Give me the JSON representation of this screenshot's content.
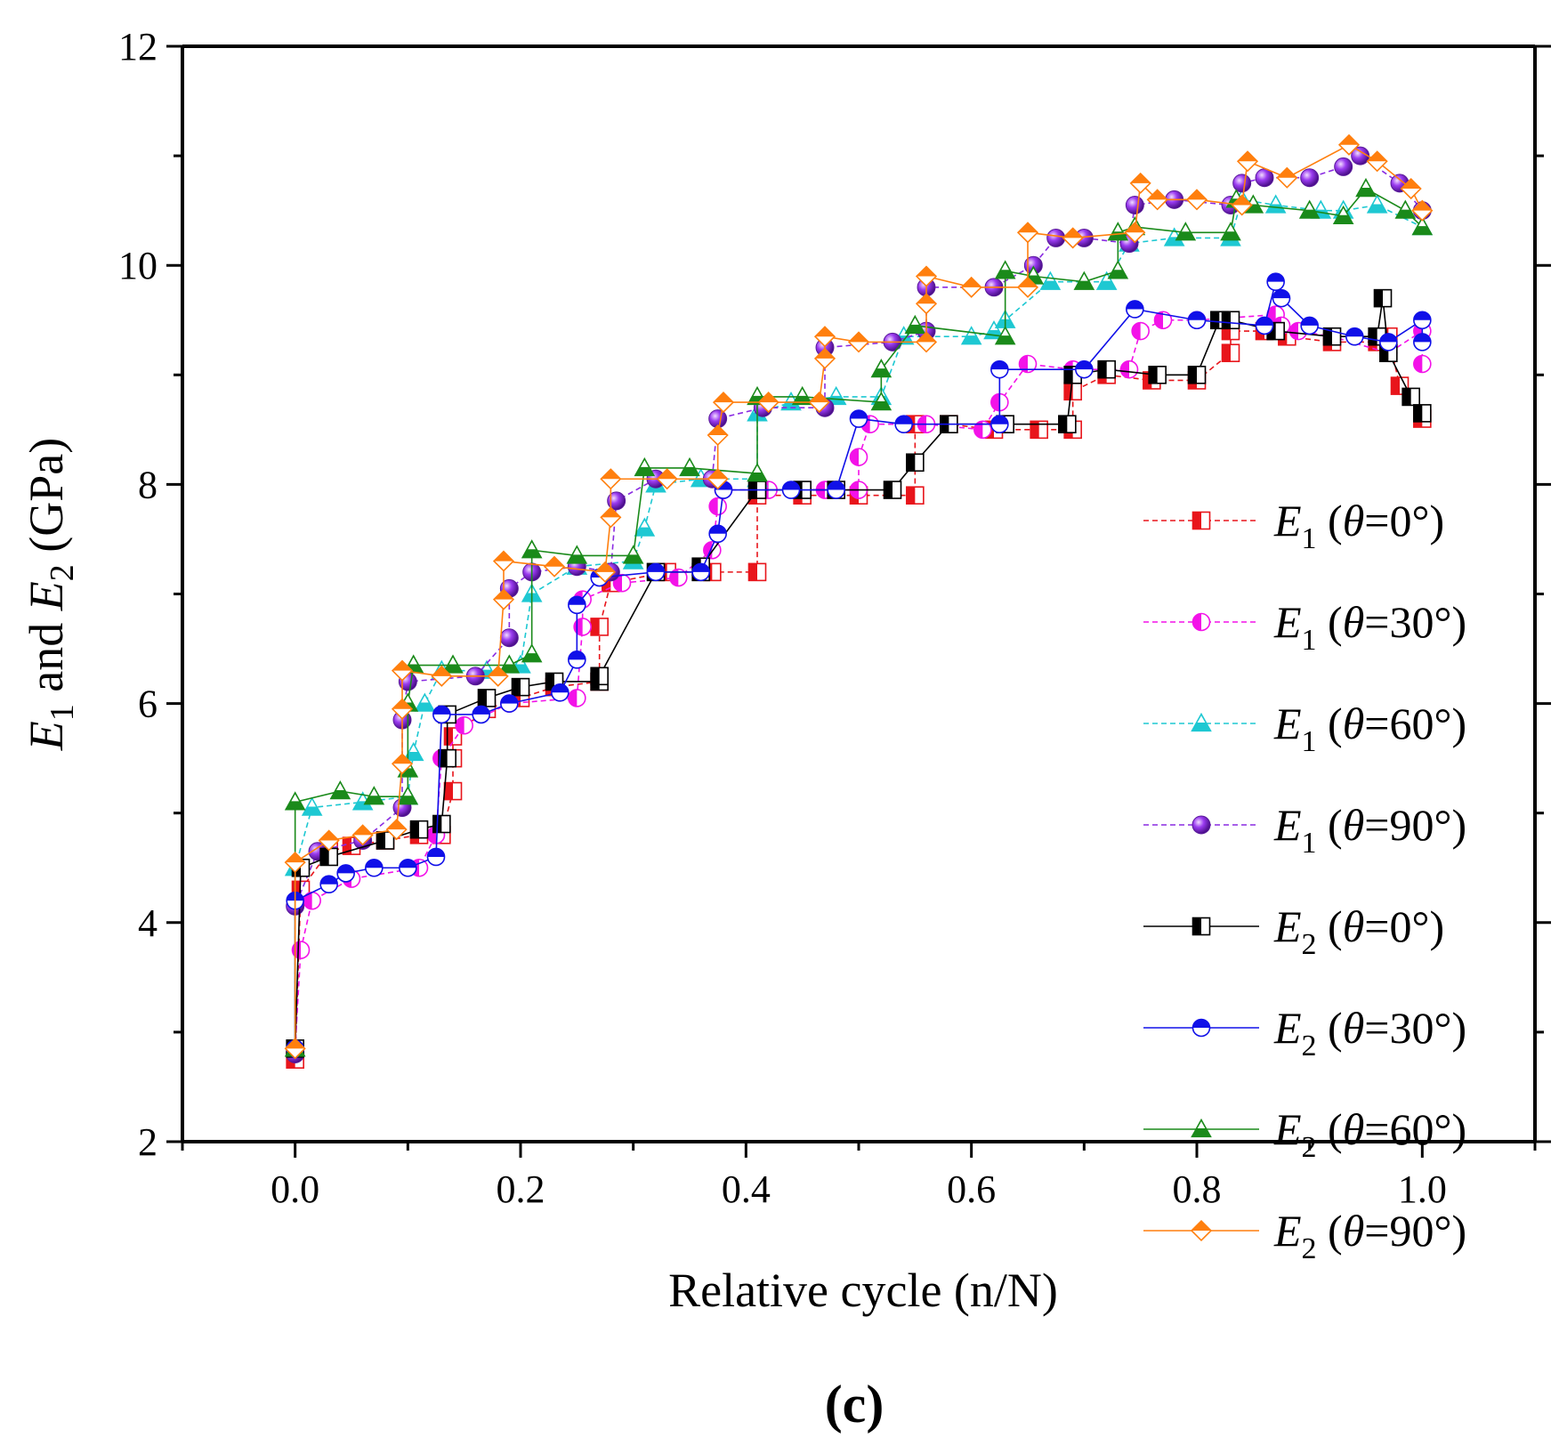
{
  "chart_data": {
    "type": "line",
    "title": "",
    "panel_label": "(c)",
    "xlabel": "Relative cycle (n/N)",
    "ylabel": {
      "e1": "E",
      "s1": "1",
      "and": " and ",
      "e2": "E",
      "s2": "2",
      "units": " (GPa)"
    },
    "xlim": [
      -0.1,
      1.1
    ],
    "ylim": [
      2,
      12
    ],
    "xticks": [
      0.0,
      0.2,
      0.4,
      0.6,
      0.8,
      1.0
    ],
    "xtick_labels": [
      "0.0",
      "0.2",
      "0.4",
      "0.6",
      "0.8",
      "1.0"
    ],
    "yticks": [
      2,
      4,
      6,
      8,
      10,
      12
    ],
    "ytick_labels": [
      "2",
      "4",
      "6",
      "8",
      "10",
      "12"
    ],
    "grid": false,
    "legend_position": "right",
    "series": [
      {
        "name": "E1 (θ=0°)",
        "sym": "E",
        "sub": "1",
        "angle": "0°",
        "color": "#e8151b",
        "dash": true,
        "marker": "square",
        "x": [
          0.0,
          0.005,
          0.03,
          0.05,
          0.08,
          0.11,
          0.13,
          0.14,
          0.14,
          0.14,
          0.17,
          0.2,
          0.23,
          0.27,
          0.27,
          0.28,
          0.33,
          0.37,
          0.41,
          0.41,
          0.45,
          0.5,
          0.55,
          0.55,
          0.58,
          0.62,
          0.66,
          0.69,
          0.69,
          0.72,
          0.76,
          0.8,
          0.83,
          0.83,
          0.86,
          0.88,
          0.92,
          0.96,
          0.97,
          0.98,
          1.0
        ],
        "y": [
          2.75,
          4.3,
          4.65,
          4.7,
          4.75,
          4.8,
          4.8,
          5.2,
          5.5,
          5.7,
          5.95,
          6.05,
          6.15,
          6.2,
          6.7,
          7.1,
          7.2,
          7.2,
          7.2,
          7.9,
          7.9,
          7.9,
          7.9,
          8.55,
          8.55,
          8.5,
          8.5,
          8.5,
          8.85,
          9.0,
          8.95,
          8.95,
          9.2,
          9.4,
          9.4,
          9.35,
          9.3,
          9.3,
          9.35,
          8.9,
          8.6
        ]
      },
      {
        "name": "E1 (θ=30°)",
        "sym": "E",
        "sub": "1",
        "angle": "30°",
        "color": "#f312e8",
        "dash": true,
        "marker": "circle",
        "x": [
          0.0,
          0.005,
          0.015,
          0.05,
          0.11,
          0.125,
          0.13,
          0.15,
          0.19,
          0.25,
          0.255,
          0.255,
          0.29,
          0.34,
          0.37,
          0.375,
          0.38,
          0.42,
          0.47,
          0.5,
          0.5,
          0.51,
          0.56,
          0.61,
          0.625,
          0.65,
          0.69,
          0.74,
          0.75,
          0.77,
          0.8,
          0.87,
          0.875,
          0.89,
          0.92,
          0.97,
          1.0,
          1.0
        ],
        "y": [
          2.85,
          3.75,
          4.2,
          4.4,
          4.5,
          4.8,
          5.5,
          5.8,
          6.0,
          6.05,
          6.7,
          6.95,
          7.1,
          7.15,
          7.4,
          7.8,
          7.95,
          7.95,
          7.95,
          7.95,
          8.25,
          8.55,
          8.55,
          8.5,
          8.75,
          9.1,
          9.05,
          9.05,
          9.4,
          9.5,
          9.5,
          9.55,
          9.45,
          9.4,
          9.35,
          9.2,
          9.4,
          9.1
        ]
      },
      {
        "name": "E1 (θ=60°)",
        "sym": "E",
        "sub": "1",
        "angle": "60°",
        "color": "#1ec8d2",
        "dash": true,
        "marker": "triangle",
        "x": [
          0.0,
          0.0,
          0.015,
          0.06,
          0.1,
          0.105,
          0.115,
          0.13,
          0.17,
          0.2,
          0.21,
          0.25,
          0.3,
          0.31,
          0.32,
          0.36,
          0.41,
          0.41,
          0.44,
          0.48,
          0.52,
          0.54,
          0.6,
          0.62,
          0.63,
          0.67,
          0.72,
          0.74,
          0.78,
          0.83,
          0.84,
          0.87,
          0.91,
          0.93,
          0.96,
          1.0
        ],
        "y": [
          2.85,
          4.5,
          5.05,
          5.1,
          5.15,
          5.55,
          6.0,
          6.3,
          6.3,
          6.35,
          7.0,
          7.25,
          7.3,
          7.6,
          8.0,
          8.05,
          8.05,
          8.65,
          8.75,
          8.8,
          8.8,
          9.35,
          9.35,
          9.4,
          9.5,
          9.85,
          9.85,
          10.2,
          10.25,
          10.25,
          10.6,
          10.55,
          10.5,
          10.5,
          10.55,
          10.35
        ]
      },
      {
        "name": "E1 (θ=90°)",
        "sym": "E",
        "sub": "1",
        "angle": "90°",
        "color": "#8a2be2",
        "dash": true,
        "marker": "sphere",
        "x": [
          0.0,
          0.0,
          0.02,
          0.06,
          0.095,
          0.095,
          0.1,
          0.16,
          0.19,
          0.19,
          0.21,
          0.25,
          0.28,
          0.285,
          0.32,
          0.37,
          0.375,
          0.415,
          0.47,
          0.47,
          0.53,
          0.56,
          0.56,
          0.62,
          0.655,
          0.675,
          0.7,
          0.74,
          0.745,
          0.78,
          0.83,
          0.84,
          0.86,
          0.9,
          0.93,
          0.945,
          0.98,
          1.0
        ],
        "y": [
          2.8,
          4.15,
          4.65,
          4.75,
          5.05,
          5.85,
          6.2,
          6.25,
          6.6,
          7.05,
          7.2,
          7.25,
          7.2,
          7.85,
          8.05,
          8.05,
          8.6,
          8.7,
          8.7,
          9.25,
          9.3,
          9.4,
          9.8,
          9.8,
          10.0,
          10.25,
          10.25,
          10.2,
          10.55,
          10.6,
          10.55,
          10.75,
          10.8,
          10.8,
          10.9,
          11.0,
          10.75,
          10.5
        ]
      },
      {
        "name": "E2 (θ=0°)",
        "sym": "E",
        "sub": "2",
        "angle": "0°",
        "color": "#000000",
        "dash": false,
        "marker": "square",
        "x": [
          0.0,
          0.005,
          0.03,
          0.08,
          0.11,
          0.13,
          0.135,
          0.135,
          0.17,
          0.2,
          0.23,
          0.27,
          0.27,
          0.32,
          0.36,
          0.36,
          0.41,
          0.45,
          0.48,
          0.53,
          0.55,
          0.58,
          0.63,
          0.685,
          0.69,
          0.72,
          0.765,
          0.8,
          0.82,
          0.83,
          0.87,
          0.92,
          0.96,
          0.965,
          0.97,
          0.99,
          1.0
        ],
        "y": [
          2.85,
          4.5,
          4.6,
          4.75,
          4.85,
          4.9,
          5.5,
          5.9,
          6.05,
          6.15,
          6.2,
          6.2,
          6.25,
          7.2,
          7.2,
          7.25,
          7.95,
          7.95,
          7.95,
          7.95,
          8.2,
          8.55,
          8.55,
          8.55,
          9.0,
          9.05,
          9.0,
          9.0,
          9.5,
          9.5,
          9.4,
          9.35,
          9.35,
          9.7,
          9.2,
          8.8,
          8.65
        ]
      },
      {
        "name": "E2 (θ=30°)",
        "sym": "E",
        "sub": "2",
        "angle": "30°",
        "color": "#1010e8",
        "dash": false,
        "marker": "half-circle",
        "x": [
          0.0,
          0.0,
          0.03,
          0.045,
          0.07,
          0.1,
          0.125,
          0.13,
          0.165,
          0.19,
          0.235,
          0.25,
          0.25,
          0.27,
          0.32,
          0.36,
          0.375,
          0.38,
          0.44,
          0.48,
          0.5,
          0.54,
          0.625,
          0.625,
          0.7,
          0.745,
          0.8,
          0.86,
          0.87,
          0.875,
          0.9,
          0.94,
          0.97,
          1.0,
          1.0
        ],
        "y": [
          2.85,
          4.2,
          4.35,
          4.45,
          4.5,
          4.5,
          4.6,
          5.9,
          5.9,
          6.0,
          6.1,
          6.4,
          6.9,
          7.15,
          7.2,
          7.2,
          7.55,
          7.95,
          7.95,
          7.95,
          8.6,
          8.55,
          8.55,
          9.05,
          9.05,
          9.6,
          9.5,
          9.45,
          9.85,
          9.7,
          9.45,
          9.35,
          9.3,
          9.5,
          9.3
        ]
      },
      {
        "name": "E2 (θ=60°)",
        "sym": "E",
        "sub": "2",
        "angle": "60°",
        "color": "#1a8a1a",
        "dash": false,
        "marker": "triangle",
        "x": [
          0.0,
          0.0,
          0.04,
          0.07,
          0.1,
          0.1,
          0.1,
          0.105,
          0.14,
          0.19,
          0.21,
          0.21,
          0.25,
          0.3,
          0.31,
          0.35,
          0.41,
          0.41,
          0.45,
          0.52,
          0.52,
          0.55,
          0.63,
          0.63,
          0.655,
          0.7,
          0.73,
          0.73,
          0.745,
          0.79,
          0.83,
          0.835,
          0.85,
          0.9,
          0.93,
          0.95,
          0.985,
          1.0
        ],
        "y": [
          2.85,
          5.1,
          5.2,
          5.15,
          5.15,
          5.4,
          6.0,
          6.35,
          6.35,
          6.35,
          6.45,
          7.4,
          7.35,
          7.35,
          8.15,
          8.15,
          8.1,
          8.8,
          8.8,
          8.75,
          9.05,
          9.45,
          9.35,
          9.95,
          9.9,
          9.85,
          9.95,
          10.3,
          10.35,
          10.3,
          10.3,
          10.6,
          10.55,
          10.5,
          10.45,
          10.7,
          10.5,
          10.35
        ]
      },
      {
        "name": "E2 (θ=90°)",
        "sym": "E",
        "sub": "2",
        "angle": "90°",
        "color": "#ff7f0e",
        "dash": false,
        "marker": "diamond",
        "x": [
          0.0,
          0.0,
          0.03,
          0.06,
          0.09,
          0.095,
          0.095,
          0.095,
          0.13,
          0.18,
          0.185,
          0.185,
          0.23,
          0.275,
          0.28,
          0.28,
          0.33,
          0.375,
          0.375,
          0.38,
          0.42,
          0.465,
          0.47,
          0.47,
          0.5,
          0.56,
          0.56,
          0.56,
          0.6,
          0.65,
          0.65,
          0.69,
          0.745,
          0.75,
          0.765,
          0.8,
          0.84,
          0.845,
          0.88,
          0.935,
          0.96,
          0.99,
          1.0
        ],
        "y": [
          2.85,
          4.55,
          4.75,
          4.8,
          4.85,
          5.45,
          5.95,
          6.3,
          6.25,
          6.25,
          6.95,
          7.3,
          7.25,
          7.2,
          7.7,
          8.05,
          8.05,
          8.05,
          8.45,
          8.75,
          8.75,
          8.75,
          9.15,
          9.35,
          9.3,
          9.3,
          9.65,
          9.9,
          9.8,
          9.8,
          10.3,
          10.25,
          10.3,
          10.75,
          10.6,
          10.6,
          10.55,
          10.95,
          10.8,
          11.1,
          10.95,
          10.7,
          10.5
        ]
      }
    ]
  }
}
